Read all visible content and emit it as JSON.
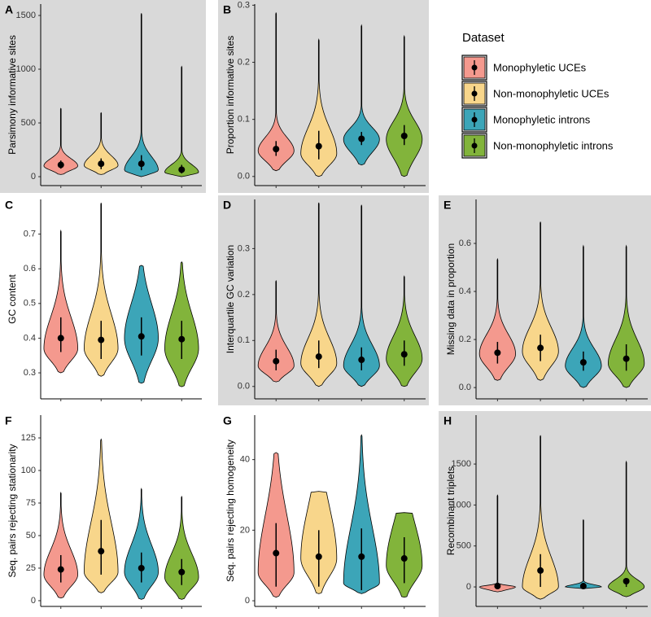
{
  "legend": {
    "title": "Dataset",
    "names": [
      "Monophyletic UCEs",
      "Non-monophyletic UCEs",
      "Monophyletic introns",
      "Non-monophyletic introns"
    ],
    "colors": [
      "#f4998e",
      "#f8d68b",
      "#3ca5b8",
      "#82b43b"
    ]
  },
  "chart_data": [
    {
      "type": "violin",
      "title": "A",
      "ylabel": "Parsimony informative sites",
      "background": "#d9d9d9",
      "ylim": [
        -83,
        1606
      ],
      "yticks": [
        0,
        500,
        1000,
        1500
      ],
      "min": [
        20,
        20,
        0,
        0
      ],
      "max": [
        635,
        595,
        1520,
        1025
      ],
      "mode": [
        100,
        105,
        60,
        40
      ],
      "median": [
        110,
        120,
        120,
        65
      ],
      "low": [
        75,
        70,
        60,
        30
      ],
      "high": [
        150,
        170,
        200,
        110
      ]
    },
    {
      "type": "violin",
      "title": "B",
      "ylabel": "Proportion informative sites",
      "background": "#d9d9d9",
      "ylim": [
        -0.016,
        0.302
      ],
      "yticks": [
        {
          "value": 0,
          "label": "0.0"
        },
        0.1,
        0.2,
        0.3
      ],
      "min": [
        0.01,
        0.0,
        0.02,
        0.0
      ],
      "max": [
        0.287,
        0.24,
        0.265,
        0.246
      ],
      "mode": [
        0.045,
        0.04,
        0.065,
        0.065
      ],
      "median": [
        0.048,
        0.053,
        0.066,
        0.071
      ],
      "low": [
        0.036,
        0.03,
        0.055,
        0.055
      ],
      "high": [
        0.062,
        0.08,
        0.078,
        0.09
      ]
    },
    {
      "type": "violin",
      "title": "C",
      "ylabel": "GC content",
      "background": "#ffffff",
      "ylim": [
        0.225,
        0.8
      ],
      "yticks": [
        0.3,
        0.4,
        0.5,
        0.6,
        0.7
      ],
      "min": [
        0.3,
        0.29,
        0.27,
        0.26
      ],
      "max": [
        0.71,
        0.79,
        0.61,
        0.62
      ],
      "mode": [
        0.37,
        0.37,
        0.4,
        0.37
      ],
      "median": [
        0.4,
        0.395,
        0.405,
        0.397
      ],
      "low": [
        0.36,
        0.34,
        0.35,
        0.34
      ],
      "high": [
        0.46,
        0.45,
        0.46,
        0.45
      ]
    },
    {
      "type": "violin",
      "title": "D",
      "ylabel": "Interquartile GC variation",
      "background": "#d9d9d9",
      "ylim": [
        -0.027,
        0.407
      ],
      "yticks": [
        {
          "value": 0,
          "label": "0.0"
        },
        0.1,
        0.2,
        0.3
      ],
      "min": [
        0.01,
        0.0,
        0.0,
        0.0
      ],
      "max": [
        0.23,
        0.4,
        0.395,
        0.24
      ],
      "mode": [
        0.045,
        0.05,
        0.045,
        0.06
      ],
      "median": [
        0.055,
        0.065,
        0.058,
        0.07
      ],
      "low": [
        0.035,
        0.04,
        0.035,
        0.045
      ],
      "high": [
        0.08,
        0.1,
        0.085,
        0.1
      ]
    },
    {
      "type": "violin",
      "title": "E",
      "ylabel": "Missing data in proportion",
      "background": "#d9d9d9",
      "ylim": [
        -0.047,
        0.783
      ],
      "yticks": [
        {
          "value": 0,
          "label": "0.0"
        },
        0.2,
        0.4,
        0.6
      ],
      "min": [
        0.03,
        0.03,
        0.0,
        0.0
      ],
      "max": [
        0.535,
        0.69,
        0.59,
        0.59
      ],
      "mode": [
        0.14,
        0.15,
        0.09,
        0.1
      ],
      "median": [
        0.145,
        0.165,
        0.105,
        0.12
      ],
      "low": [
        0.1,
        0.11,
        0.07,
        0.07
      ],
      "high": [
        0.19,
        0.22,
        0.15,
        0.18
      ]
    },
    {
      "type": "violin",
      "title": "F",
      "ylabel": "Seq. pairs rejecting stationarity",
      "background": "#ffffff",
      "ylim": [
        -4.4,
        142.5
      ],
      "yticks": [
        0,
        25,
        50,
        75,
        100,
        125
      ],
      "min": [
        2,
        6,
        1,
        1
      ],
      "max": [
        83,
        124,
        86,
        80
      ],
      "mode": [
        20,
        22,
        22,
        18
      ],
      "median": [
        24,
        38,
        25,
        22
      ],
      "low": [
        14,
        20,
        14,
        12
      ],
      "high": [
        35,
        62,
        37,
        32
      ]
    },
    {
      "type": "violin",
      "title": "G",
      "ylabel": "Seq. pairs rejecting homogeneity",
      "background": "#ffffff",
      "ylim": [
        -1.6,
        52.6
      ],
      "yticks": [
        0,
        20,
        40
      ],
      "min": [
        1,
        2,
        2,
        1
      ],
      "max": [
        42,
        31,
        47,
        25
      ],
      "mode": [
        8,
        12,
        5,
        10
      ],
      "median": [
        13.5,
        12.5,
        12.5,
        12
      ],
      "low": [
        4,
        4,
        3,
        5
      ],
      "high": [
        22,
        20,
        20.5,
        18
      ]
    },
    {
      "type": "violin",
      "title": "H",
      "ylabel": "Recombinant triplets",
      "background": "#d9d9d9",
      "ylim": [
        -238,
        2097
      ],
      "yticks": [
        0,
        500,
        1000,
        1500
      ],
      "min": [
        -60,
        -150,
        -20,
        -120
      ],
      "max": [
        1120,
        1850,
        820,
        1530
      ],
      "mode": [
        0,
        0,
        0,
        0
      ],
      "median": [
        10,
        200,
        10,
        70
      ],
      "low": [
        0,
        0,
        0,
        0
      ],
      "high": [
        20,
        400,
        30,
        100
      ]
    }
  ]
}
